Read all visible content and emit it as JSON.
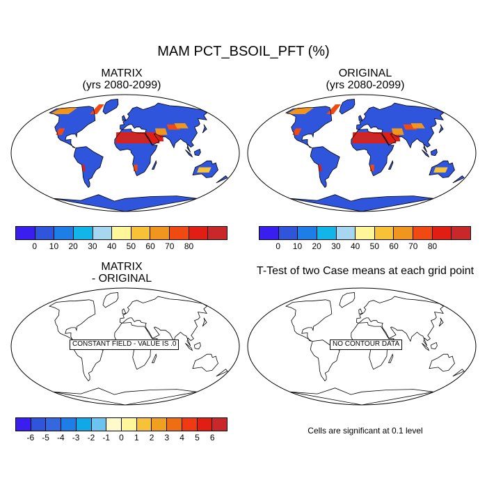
{
  "title": "MAM PCT_BSOIL_PFT (%)",
  "panels": [
    {
      "id": "matrix",
      "title_line1": "MATRIX",
      "title_line2": "(yrs 2080-2099)"
    },
    {
      "id": "original",
      "title_line1": "ORIGINAL",
      "title_line2": "(yrs 2080-2099)"
    },
    {
      "id": "difference",
      "title_line1": "MATRIX",
      "title_line2": "- ORIGINAL",
      "note": "CONSTANT FIELD - VALUE IS .0"
    },
    {
      "id": "ttest",
      "title_line1": "T-Test of two Case means at each grid point",
      "note": "NO CONTOUR DATA",
      "footer": "Cells are significant at 0.1 level"
    }
  ],
  "colorbar_main": {
    "colors": [
      "#3a1ef0",
      "#2f55dc",
      "#1e7ee8",
      "#11b5e8",
      "#a6d6f0",
      "#fff69a",
      "#f7c238",
      "#f0961e",
      "#f04a12",
      "#e01e14",
      "#c8282a"
    ],
    "labels": [
      "0",
      "10",
      "20",
      "30",
      "40",
      "50",
      "60",
      "70",
      "80"
    ]
  },
  "colorbar_diff": {
    "colors": [
      "#3a1ef0",
      "#2f55dc",
      "#3368e0",
      "#1e7ee8",
      "#11a8e8",
      "#6cc3f0",
      "#fffacc",
      "#fff69a",
      "#f7c238",
      "#f0a01e",
      "#f06e12",
      "#f03a12",
      "#e01e14",
      "#c8282a"
    ],
    "labels": [
      "-6",
      "-5",
      "-4",
      "-3",
      "-2",
      "-1",
      "0",
      "1",
      "2",
      "3",
      "4",
      "5",
      "6"
    ]
  }
}
